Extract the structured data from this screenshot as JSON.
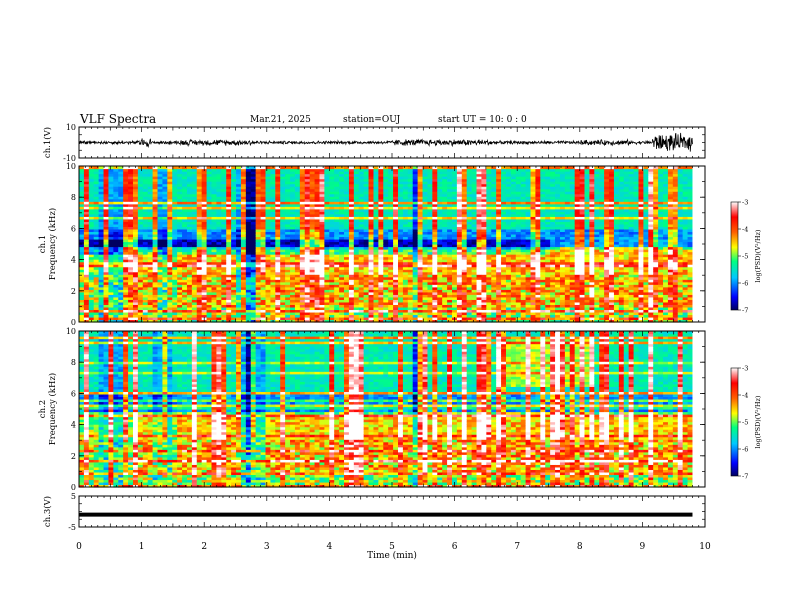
{
  "header": {
    "title": "VLF Spectra",
    "date": "Mar.21, 2025",
    "station": "station=OUJ",
    "start": "start  UT  =   10: 0  : 0"
  },
  "chart_data": [
    {
      "type": "line",
      "panel": "ch1-waveform",
      "ylabel": "ch.1(V)",
      "ylim": [
        -10,
        10
      ],
      "y_ticks": [
        "10",
        "-10"
      ],
      "xlim": [
        0,
        10
      ],
      "description": "noisy waveform with bursts near 1.0, 1.6-2.8, 5-6.5 and 9.2-9.8 min"
    },
    {
      "type": "heatmap",
      "panel": "ch1-spectrogram",
      "ylabel": "ch.1\nFrequency (kHz)",
      "ylabel_lines": [
        "ch.1",
        "Frequency (kHz)"
      ],
      "ylim": [
        0,
        10
      ],
      "y_ticks": [
        "0",
        "2",
        "4",
        "6",
        "8",
        "10"
      ],
      "xlim": [
        0,
        10
      ],
      "colorbar": {
        "label": "log(PSD)(V²/Hz)",
        "range": [
          -7,
          -3
        ],
        "ticks": [
          "-3",
          "-4",
          "-5",
          "-6",
          "-7"
        ]
      }
    },
    {
      "type": "heatmap",
      "panel": "ch2-spectrogram",
      "ylabel": "ch.2\nFrequency (kHz)",
      "ylabel_lines": [
        "ch.2",
        "Frequency (kHz)"
      ],
      "ylim": [
        0,
        10
      ],
      "y_ticks": [
        "0",
        "2",
        "4",
        "6",
        "8",
        "10"
      ],
      "xlim": [
        0,
        10
      ],
      "colorbar": {
        "label": "log(PSD)(V²/Hz)",
        "range": [
          -7,
          -3
        ],
        "ticks": [
          "-3",
          "-4",
          "-5",
          "-6",
          "-7"
        ]
      }
    },
    {
      "type": "line",
      "panel": "ch3-waveform",
      "ylabel": "ch.3(V)",
      "ylim": [
        -5,
        5
      ],
      "y_ticks": [
        "5",
        "-5"
      ],
      "xlim": [
        0,
        10
      ],
      "constant_value": -1,
      "description": "flat thick line at about -1 V"
    }
  ],
  "x_axis": {
    "label": "Time (min)",
    "range": [
      0,
      10
    ],
    "ticks": [
      "0",
      "1",
      "2",
      "3",
      "4",
      "5",
      "6",
      "7",
      "8",
      "9",
      "10"
    ],
    "data_end": 9.8
  },
  "colors": {
    "frame": "#000000",
    "background": "#ffffff"
  }
}
